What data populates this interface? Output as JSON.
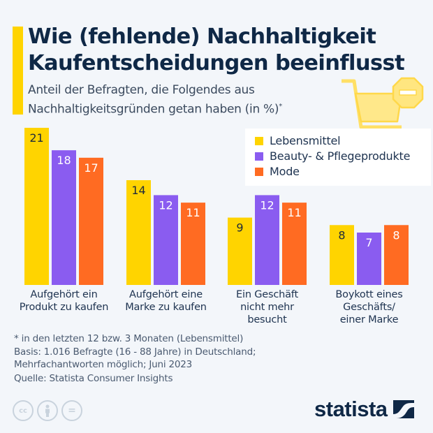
{
  "header": {
    "title_line1": "Wie (fehlende) Nachhaltigkeit",
    "title_line2": "Kaufentscheidungen beeinflusst",
    "subtitle_line1": "Anteil der Befragten, die Folgendes aus",
    "subtitle_line2": "Nachhaltigkeitsgründen getan haben (in %)",
    "subtitle_marker": "*"
  },
  "colors": {
    "accent": "#ffd400",
    "lebensmittel": "#ffd400",
    "beauty": "#8a5cf0",
    "mode": "#ff6b22",
    "title": "#0f2846"
  },
  "chart_data": {
    "type": "bar",
    "title": "Wie (fehlende) Nachhaltigkeit Kaufentscheidungen beeinflusst",
    "subtitle": "Anteil der Befragten, die Folgendes aus Nachhaltigkeitsgründen getan haben (in %)*",
    "xlabel": "",
    "ylabel": "",
    "ylim": [
      0,
      21
    ],
    "grid": false,
    "legend_position": "top-right",
    "categories": [
      "Aufgehört ein Produkt zu kaufen",
      "Aufgehört eine Marke zu kaufen",
      "Ein Geschäft nicht mehr besucht",
      "Boykott eines Geschäfts/ einer Marke"
    ],
    "category_lines": [
      [
        "Aufgehört ein",
        "Produkt zu kaufen"
      ],
      [
        "Aufgehört eine",
        "Marke zu kaufen"
      ],
      [
        "Ein Geschäft",
        "nicht mehr",
        "besucht"
      ],
      [
        "Boykott eines",
        "Geschäfts/",
        "einer Marke"
      ]
    ],
    "series": [
      {
        "name": "Lebensmittel",
        "color": "#ffd400",
        "label_color": "#1e2a3a",
        "values": [
          21,
          14,
          9,
          8
        ]
      },
      {
        "name": "Beauty- & Pflegeprodukte",
        "color": "#8a5cf0",
        "label_color": "#ffffff",
        "values": [
          18,
          12,
          12,
          7
        ]
      },
      {
        "name": "Mode",
        "color": "#ff6b22",
        "label_color": "#ffffff",
        "values": [
          17,
          11,
          11,
          8
        ]
      }
    ]
  },
  "footer": {
    "note_line1": "* in den letzten 12 bzw. 3 Monaten (Lebensmittel)",
    "note_line2": "Basis: 1.016 Befragte (16 - 88 Jahre) in Deutschland;",
    "note_line3": "Mehrfachantworten möglich; Juni 2023",
    "source": "Quelle: Statista Consumer Insights",
    "license_icons": [
      "cc-icon",
      "by-icon",
      "nd-icon"
    ],
    "cc_text": "cc",
    "nd_text": "=",
    "logo_text": "statista"
  }
}
